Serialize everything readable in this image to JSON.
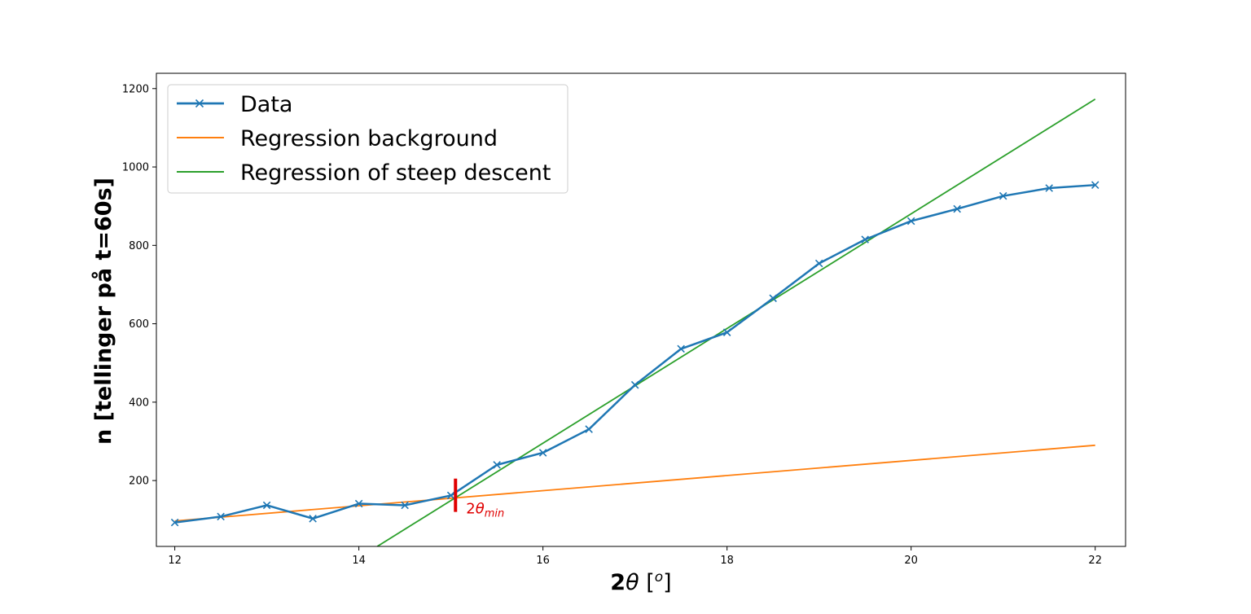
{
  "chart_data": {
    "type": "line",
    "title": "",
    "xlabel_main": "2",
    "xlabel_theta": "θ",
    "xlabel_unit_open": " [",
    "xlabel_unit_sup": "o",
    "xlabel_unit_close": "]",
    "ylabel": "n [tellinger på t=60s]",
    "xlim": [
      11.8,
      22.33
    ],
    "ylim": [
      32,
      1239
    ],
    "xticks": [
      12,
      14,
      16,
      18,
      20,
      22
    ],
    "yticks": [
      200,
      400,
      600,
      800,
      1000,
      1200
    ],
    "grid": false,
    "legend_position": "top-left",
    "series": [
      {
        "name": "Data",
        "style": "line-with-x-markers",
        "color": "#1f77b4",
        "x": [
          12,
          12.5,
          13,
          13.5,
          14,
          14.5,
          15,
          15.5,
          16,
          16.5,
          17,
          17.5,
          18,
          18.5,
          19,
          19.5,
          20,
          20.5,
          21,
          21.5,
          22
        ],
        "values": [
          93,
          108,
          137,
          103,
          141,
          137,
          162,
          240,
          271,
          331,
          444,
          536,
          578,
          665,
          754,
          815,
          862,
          893,
          926,
          946,
          954
        ]
      },
      {
        "name": "Regression background",
        "style": "line",
        "color": "#ff7f0e",
        "x": [
          12,
          22
        ],
        "values": [
          97,
          290
        ]
      },
      {
        "name": "Regression of steep descent",
        "style": "line",
        "color": "#2ca02c",
        "x": [
          14.2,
          22
        ],
        "values": [
          32,
          1173
        ]
      }
    ],
    "annotation": {
      "x": 15.05,
      "y_range": [
        120,
        205
      ],
      "color": "#e00000",
      "label_main": "2",
      "label_theta": "θ",
      "label_sub": "min"
    }
  }
}
